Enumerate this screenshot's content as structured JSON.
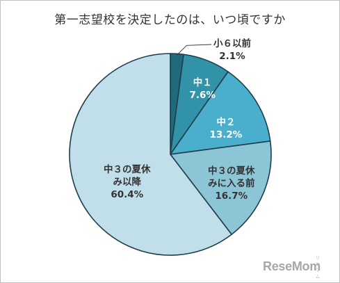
{
  "title": "第一志望校を決定したのは、いつ頃ですか",
  "chart_data": {
    "type": "pie",
    "title": "第一志望校を決定したのは、いつ頃ですか",
    "start_angle_deg": 0,
    "direction": "clockwise",
    "slices": [
      {
        "name": "小6以前",
        "label_lines": [
          "小６以前"
        ],
        "value": 2.1,
        "value_label": "2.1%",
        "color": "#216a7c"
      },
      {
        "name": "中1",
        "label_lines": [
          "中１"
        ],
        "value": 7.6,
        "value_label": "7.6%",
        "color": "#3192a8"
      },
      {
        "name": "中2",
        "label_lines": [
          "中２"
        ],
        "value": 13.2,
        "value_label": "13.2%",
        "color": "#4aafcc"
      },
      {
        "name": "中3の夏休みに入る前",
        "label_lines": [
          "中３の夏休",
          "みに入る前"
        ],
        "value": 16.7,
        "value_label": "16.7%",
        "color": "#8cc5d6"
      },
      {
        "name": "中3の夏休み以降",
        "label_lines": [
          "中３の夏休",
          "み以降"
        ],
        "value": 60.4,
        "value_label": "60.4%",
        "color": "#c0dfea"
      }
    ]
  },
  "watermark": {
    "text": "ReseMom",
    "kana": "リセマム"
  }
}
